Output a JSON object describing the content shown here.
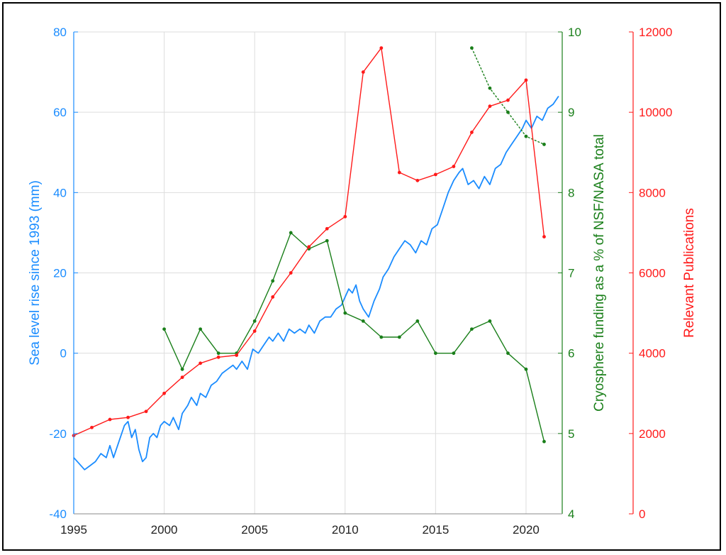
{
  "chart_data": {
    "type": "line",
    "title": "",
    "x_axis": {
      "range": [
        1995,
        2022
      ],
      "ticks": [
        1995,
        2000,
        2005,
        2010,
        2015,
        2020
      ],
      "tick_labels": [
        "1995",
        "2000",
        "2005",
        "2010",
        "2015",
        "2020"
      ],
      "grid": true
    },
    "y_axes": [
      {
        "id": "sea",
        "side": "left",
        "label": "Sea level rise since 1993 (mm)",
        "color": "#1a8cff",
        "range": [
          -40,
          80
        ],
        "ticks": [
          -40,
          -20,
          0,
          20,
          40,
          60,
          80
        ],
        "tick_labels": [
          "-40",
          "-20",
          "0",
          "20",
          "40",
          "60",
          "80"
        ],
        "grid": true
      },
      {
        "id": "funding",
        "side": "right",
        "label": "Cryosphere funding as a % of NSF/NASA total",
        "color": "#1a7f1a",
        "range": [
          4,
          10
        ],
        "ticks": [
          4,
          5,
          6,
          7,
          8,
          9,
          10
        ],
        "tick_labels": [
          "4",
          "5",
          "6",
          "7",
          "8",
          "9",
          "10"
        ]
      },
      {
        "id": "pubs",
        "side": "right",
        "label": "Relevant Publications",
        "color": "#ff1a1a",
        "range": [
          0,
          12000
        ],
        "ticks": [
          0,
          2000,
          4000,
          6000,
          8000,
          10000,
          12000
        ],
        "tick_labels": [
          "0",
          "2000",
          "4000",
          "6000",
          "8000",
          "10000",
          "12000"
        ]
      }
    ],
    "series": [
      {
        "axis": "sea",
        "style": "smooth",
        "color": "#1a8cff",
        "points": [
          [
            1995.0,
            -26
          ],
          [
            1995.3,
            -27.5
          ],
          [
            1995.6,
            -29
          ],
          [
            1995.9,
            -28
          ],
          [
            1996.2,
            -27
          ],
          [
            1996.5,
            -25
          ],
          [
            1996.8,
            -26
          ],
          [
            1997.0,
            -23
          ],
          [
            1997.2,
            -26
          ],
          [
            1997.5,
            -22
          ],
          [
            1997.8,
            -18
          ],
          [
            1998.0,
            -17
          ],
          [
            1998.2,
            -21
          ],
          [
            1998.4,
            -19
          ],
          [
            1998.6,
            -24
          ],
          [
            1998.8,
            -27
          ],
          [
            1999.0,
            -26
          ],
          [
            1999.2,
            -21
          ],
          [
            1999.4,
            -20
          ],
          [
            1999.6,
            -21
          ],
          [
            1999.8,
            -18
          ],
          [
            2000.0,
            -17
          ],
          [
            2000.3,
            -18
          ],
          [
            2000.5,
            -16
          ],
          [
            2000.8,
            -19
          ],
          [
            2001.0,
            -15
          ],
          [
            2001.3,
            -13
          ],
          [
            2001.5,
            -11
          ],
          [
            2001.8,
            -13
          ],
          [
            2002.0,
            -10
          ],
          [
            2002.3,
            -11
          ],
          [
            2002.6,
            -8
          ],
          [
            2002.9,
            -7
          ],
          [
            2003.2,
            -5
          ],
          [
            2003.5,
            -4
          ],
          [
            2003.8,
            -3
          ],
          [
            2004.0,
            -4
          ],
          [
            2004.3,
            -2
          ],
          [
            2004.6,
            -4
          ],
          [
            2004.9,
            1
          ],
          [
            2005.2,
            0
          ],
          [
            2005.5,
            2
          ],
          [
            2005.8,
            4
          ],
          [
            2006.0,
            3
          ],
          [
            2006.3,
            5
          ],
          [
            2006.6,
            3
          ],
          [
            2006.9,
            6
          ],
          [
            2007.2,
            5
          ],
          [
            2007.5,
            6
          ],
          [
            2007.8,
            5
          ],
          [
            2008.0,
            7
          ],
          [
            2008.3,
            5
          ],
          [
            2008.6,
            8
          ],
          [
            2008.9,
            9
          ],
          [
            2009.2,
            9
          ],
          [
            2009.5,
            11
          ],
          [
            2009.8,
            12
          ],
          [
            2010.0,
            14
          ],
          [
            2010.2,
            16
          ],
          [
            2010.4,
            15
          ],
          [
            2010.6,
            17
          ],
          [
            2010.8,
            13
          ],
          [
            2011.0,
            11
          ],
          [
            2011.3,
            9
          ],
          [
            2011.6,
            13
          ],
          [
            2011.9,
            16
          ],
          [
            2012.1,
            19
          ],
          [
            2012.4,
            21
          ],
          [
            2012.7,
            24
          ],
          [
            2013.0,
            26
          ],
          [
            2013.3,
            28
          ],
          [
            2013.6,
            27
          ],
          [
            2013.9,
            25
          ],
          [
            2014.2,
            28
          ],
          [
            2014.5,
            27
          ],
          [
            2014.8,
            31
          ],
          [
            2015.1,
            32
          ],
          [
            2015.4,
            36
          ],
          [
            2015.7,
            40
          ],
          [
            2016.0,
            43
          ],
          [
            2016.3,
            45
          ],
          [
            2016.5,
            46
          ],
          [
            2016.8,
            42
          ],
          [
            2017.1,
            43
          ],
          [
            2017.4,
            41
          ],
          [
            2017.7,
            44
          ],
          [
            2018.0,
            42
          ],
          [
            2018.3,
            46
          ],
          [
            2018.6,
            47
          ],
          [
            2018.9,
            50
          ],
          [
            2019.2,
            52
          ],
          [
            2019.5,
            54
          ],
          [
            2019.8,
            56
          ],
          [
            2020.0,
            58
          ],
          [
            2020.3,
            56
          ],
          [
            2020.6,
            59
          ],
          [
            2020.9,
            58
          ],
          [
            2021.2,
            61
          ],
          [
            2021.5,
            62
          ],
          [
            2021.8,
            64
          ]
        ]
      },
      {
        "axis": "funding",
        "style": "markers",
        "color": "#1a7f1a",
        "points": [
          [
            2000,
            6.3
          ],
          [
            2001,
            5.8
          ],
          [
            2002,
            6.3
          ],
          [
            2003,
            6.0
          ],
          [
            2004,
            6.0
          ],
          [
            2005,
            6.4
          ],
          [
            2006,
            6.9
          ],
          [
            2007,
            7.5
          ],
          [
            2008,
            7.3
          ],
          [
            2009,
            7.4
          ],
          [
            2010,
            6.5
          ],
          [
            2011,
            6.4
          ],
          [
            2012,
            6.2
          ],
          [
            2013,
            6.2
          ],
          [
            2014,
            6.4
          ],
          [
            2015,
            6.0
          ],
          [
            2016,
            6.0
          ],
          [
            2017,
            6.3
          ],
          [
            2018,
            6.4
          ],
          [
            2019,
            6.0
          ],
          [
            2020,
            5.8
          ],
          [
            2021,
            4.9
          ]
        ]
      },
      {
        "axis": "funding",
        "style": "dashed-markers",
        "color": "#1a7f1a",
        "points": [
          [
            2017,
            9.8
          ],
          [
            2018,
            9.3
          ],
          [
            2019,
            9.0
          ],
          [
            2020,
            8.7
          ],
          [
            2021,
            8.6
          ]
        ]
      },
      {
        "axis": "pubs",
        "style": "markers",
        "color": "#ff1a1a",
        "points": [
          [
            1995,
            1950
          ],
          [
            1996,
            2150
          ],
          [
            1997,
            2350
          ],
          [
            1998,
            2400
          ],
          [
            1999,
            2550
          ],
          [
            2000,
            3000
          ],
          [
            2001,
            3400
          ],
          [
            2002,
            3750
          ],
          [
            2003,
            3900
          ],
          [
            2004,
            3950
          ],
          [
            2005,
            4550
          ],
          [
            2006,
            5400
          ],
          [
            2007,
            6000
          ],
          [
            2008,
            6650
          ],
          [
            2009,
            7100
          ],
          [
            2010,
            7400
          ],
          [
            2011,
            11000
          ],
          [
            2012,
            11600
          ],
          [
            2013,
            8500
          ],
          [
            2014,
            8300
          ],
          [
            2015,
            8450
          ],
          [
            2016,
            8650
          ],
          [
            2017,
            9500
          ],
          [
            2018,
            10150
          ],
          [
            2019,
            10300
          ],
          [
            2020,
            10800
          ],
          [
            2021,
            6900
          ]
        ]
      }
    ]
  }
}
